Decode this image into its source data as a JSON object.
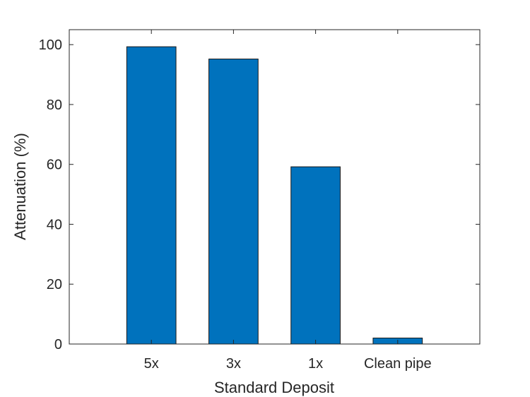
{
  "chart_data": {
    "type": "bar",
    "categories": [
      "5x",
      "3x",
      "1x",
      "Clean pipe"
    ],
    "values": [
      99.3,
      95.2,
      59.2,
      2.0
    ],
    "xlabel": "Standard Deposit",
    "ylabel": "Attenuation (%)",
    "ylim": [
      0,
      105
    ],
    "yticks": [
      0,
      20,
      40,
      60,
      80,
      100
    ],
    "bar_color": "#0072BD",
    "grid": false
  }
}
